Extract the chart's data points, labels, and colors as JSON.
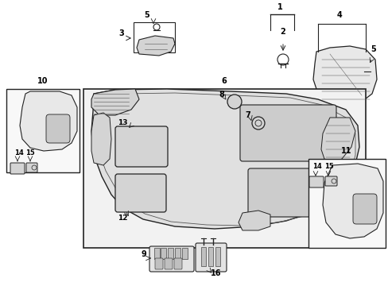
{
  "bg_color": "#ffffff",
  "gray_fill": "#e8e8e8",
  "light_gray": "#d4d4d4",
  "dark_line": "#222222",
  "med_line": "#555555"
}
